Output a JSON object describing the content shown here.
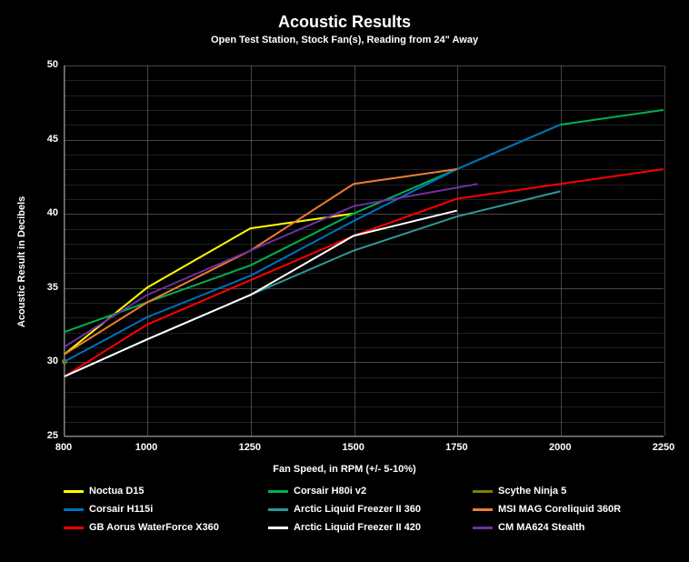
{
  "chart": {
    "type": "line",
    "title": "Acoustic Results",
    "subtitle": "Open Test Station, Stock Fan(s), Reading from 24\" Away",
    "title_fontsize": 18,
    "subtitle_fontsize": 11,
    "background_color": "#000000",
    "grid_color": "#808080",
    "axis_label_fontsize": 11,
    "tick_fontsize": 11,
    "legend_fontsize": 11,
    "line_width": 2,
    "x_axis": {
      "title": "Fan Speed, in RPM (+/- 5-10%)",
      "min": 800,
      "max": 2250,
      "ticks": [
        800,
        1000,
        1250,
        1500,
        1750,
        2000,
        2250
      ]
    },
    "y_axis": {
      "title": "Acoustic Result in Decibels",
      "min": 25,
      "max": 50,
      "ticks": [
        25,
        30,
        35,
        40,
        45,
        50
      ]
    },
    "series": [
      {
        "name": "Noctua D15",
        "color": "#ffff00",
        "x": [
          800,
          1000,
          1250,
          1500
        ],
        "y": [
          30.5,
          35.0,
          39.0,
          40.0
        ]
      },
      {
        "name": "Corsair H80i v2",
        "color": "#00b050",
        "x": [
          800,
          1000,
          1250,
          1500,
          1750,
          2000,
          2250
        ],
        "y": [
          32.0,
          34.0,
          36.5,
          40.0,
          43.0,
          46.0,
          47.0
        ]
      },
      {
        "name": "Scythe Ninja 5",
        "color": "#808000",
        "x": [
          800
        ],
        "y": [
          30.0
        ]
      },
      {
        "name": "Corsair H115i",
        "color": "#0070c0",
        "x": [
          800,
          1000,
          1250,
          1500,
          1750,
          2000
        ],
        "y": [
          30.0,
          33.0,
          35.8,
          39.5,
          43.0,
          46.0
        ]
      },
      {
        "name": "Arctic Liquid Freezer II 360",
        "color": "#2e9999",
        "x": [
          800,
          1000,
          1250,
          1500,
          1750,
          2000
        ],
        "y": [
          29.0,
          31.5,
          34.5,
          37.5,
          39.8,
          41.5
        ]
      },
      {
        "name": "MSI MAG Coreliquid 360R",
        "color": "#ed7d31",
        "x": [
          800,
          1000,
          1250,
          1500,
          1750
        ],
        "y": [
          30.5,
          34.0,
          37.5,
          42.0,
          43.0
        ]
      },
      {
        "name": "GB Aorus WaterForce X360",
        "color": "#ff0000",
        "x": [
          800,
          1000,
          1250,
          1500,
          1750,
          2000,
          2250
        ],
        "y": [
          29.0,
          32.5,
          35.5,
          38.5,
          41.0,
          42.0,
          43.0
        ]
      },
      {
        "name": "Arctic Liquid Freezer II 420",
        "color": "#ffffff",
        "x": [
          800,
          1000,
          1250,
          1500,
          1750
        ],
        "y": [
          29.0,
          31.5,
          34.5,
          38.5,
          40.2
        ]
      },
      {
        "name": "CM MA624 Stealth",
        "color": "#7030a0",
        "x": [
          800,
          1000,
          1250,
          1500,
          1800
        ],
        "y": [
          31.0,
          34.5,
          37.5,
          40.5,
          42.0
        ]
      }
    ],
    "legend_layout": {
      "cols": 3,
      "order": [
        0,
        1,
        2,
        3,
        4,
        5,
        6,
        7,
        8
      ]
    }
  }
}
